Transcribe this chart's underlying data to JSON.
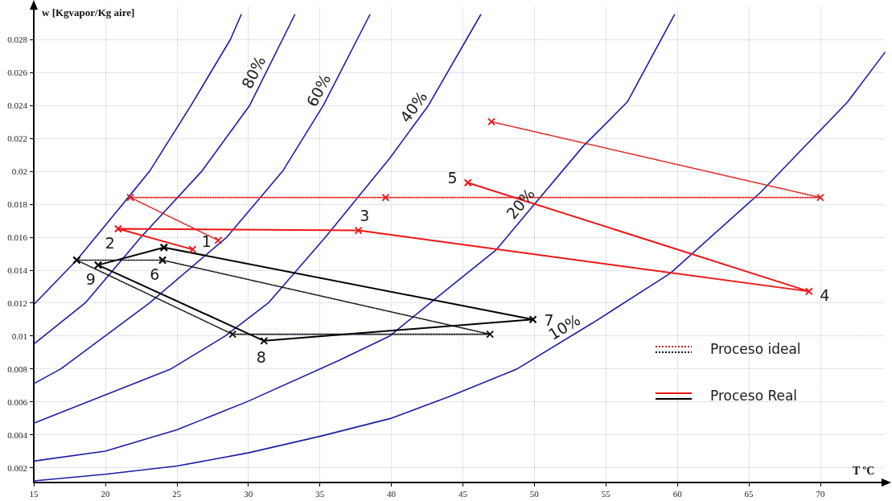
{
  "chart_data": {
    "type": "line",
    "xlabel": "T ºC",
    "ylabel": "w [Kgvapor/Kg aire]",
    "xlim": [
      15,
      74.5
    ],
    "ylim": [
      0.0011,
      0.03
    ],
    "xticks": [
      15,
      20,
      25,
      30,
      35,
      40,
      45,
      50,
      55,
      60,
      65,
      70
    ],
    "yticks": [
      0.002,
      0.004,
      0.006,
      0.008,
      0.01,
      0.012,
      0.014,
      0.016,
      0.018,
      0.02,
      0.022,
      0.024,
      0.026,
      0.028
    ],
    "grid": true,
    "legend": "bottom right",
    "series": [
      {
        "color": "#1c1ca8",
        "marker": "none",
        "line_style": "solid",
        "x": [
          15,
          18,
          21.6,
          23.1,
          26,
          28.75,
          29.5
        ],
        "values": [
          0.0119,
          0.0146,
          0.0184,
          0.02,
          0.024,
          0.028,
          0.0295
        ]
      },
      {
        "color": "#1c1ca8",
        "marker": "none",
        "line_style": "solid",
        "x": [
          15,
          18.6,
          22.5,
          26.75,
          30.1,
          33.25
        ],
        "values": [
          0.0095,
          0.012,
          0.016,
          0.02,
          0.024,
          0.0295
        ]
      },
      {
        "color": "#1c1ca8",
        "marker": "none",
        "line_style": "solid",
        "x": [
          15,
          16.9,
          23.1,
          28.5,
          32.4,
          35.25,
          38.5
        ],
        "values": [
          0.0071,
          0.008,
          0.012,
          0.016,
          0.02,
          0.024,
          0.0295
        ]
      },
      {
        "color": "#1c1ca8",
        "marker": "none",
        "line_style": "solid",
        "x": [
          15,
          24.6,
          28.4,
          31.4,
          35.4,
          39.9,
          42.6,
          46.25
        ],
        "values": [
          0.0047,
          0.008,
          0.01,
          0.012,
          0.016,
          0.0208,
          0.024,
          0.0295
        ]
      },
      {
        "color": "#1c1ca8",
        "marker": "none",
        "line_style": "solid",
        "x": [
          15,
          20,
          25,
          29.9,
          36.3,
          39.9,
          43,
          47.3,
          53.4,
          56.5,
          59.8
        ],
        "values": [
          0.0024,
          0.003,
          0.0043,
          0.006,
          0.0085,
          0.01,
          0.0122,
          0.0152,
          0.0215,
          0.0242,
          0.0295
        ]
      },
      {
        "color": "#1c1ca8",
        "marker": "none",
        "line_style": "solid",
        "x": [
          15,
          20,
          25,
          30,
          35,
          40,
          44,
          48.8,
          54.1,
          59.5,
          65.8,
          71.9,
          74.5
        ],
        "values": [
          0.0012,
          0.0016,
          0.0021,
          0.0029,
          0.0039,
          0.005,
          0.0063,
          0.008,
          0.0108,
          0.0138,
          0.0187,
          0.0242,
          0.0272
        ]
      },
      {
        "name": "Proceso ideal",
        "color": "#e02020",
        "marker": "cross",
        "line_style": "dotted",
        "x": [
          27.9,
          21.75,
          39.6,
          70,
          47
        ],
        "values": [
          0.0158,
          0.0184,
          0.0184,
          0.0184,
          0.023
        ]
      },
      {
        "color": "#111111",
        "marker": "cross",
        "line_style": "dotted",
        "x": [
          24,
          46.9,
          28.9,
          18
        ],
        "values": [
          0.0146,
          0.0101,
          0.0101,
          0.0146
        ]
      },
      {
        "color": "#111111",
        "marker": "cross",
        "line_style": "dotted",
        "x": [
          18,
          24
        ],
        "values": [
          0.0146,
          0.0146
        ]
      },
      {
        "name": "Proceso Real",
        "color": "#f01515",
        "marker": "cross",
        "line_style": "solid",
        "x": [
          26.1,
          20.9,
          37.7,
          69.2,
          45.35
        ],
        "values": [
          0.01525,
          0.0165,
          0.0164,
          0.0127,
          0.0193
        ]
      },
      {
        "color": "#000000",
        "marker": "cross",
        "line_style": "solid",
        "x": [
          24.1,
          49.9,
          31.1,
          19.5
        ],
        "values": [
          0.01537,
          0.011,
          0.0097,
          0.0143
        ]
      },
      {
        "color": "#000000",
        "marker": "cross",
        "line_style": "solid",
        "x": [
          19.5,
          24.1
        ],
        "values": [
          0.0143,
          0.01537
        ]
      }
    ],
    "annotations": [
      {
        "text": "80%",
        "x": 31.07,
        "y": 0.0257
      },
      {
        "text": "60%",
        "x": 35.6,
        "y": 0.0246
      },
      {
        "text": "40%",
        "x": 42.18,
        "y": 0.0235
      },
      {
        "text": "20%",
        "x": 49.62,
        "y": 0.0176
      },
      {
        "text": "10%",
        "x": 52.5,
        "y": 0.00996
      },
      {
        "text": "1",
        "x": 26.1,
        "y": 0.01525
      },
      {
        "text": "2",
        "x": 20.9,
        "y": 0.0165
      },
      {
        "text": "3",
        "x": 37.7,
        "y": 0.0164
      },
      {
        "text": "4",
        "x": 69.2,
        "y": 0.0127
      },
      {
        "text": "5",
        "x": 45.35,
        "y": 0.0193
      },
      {
        "text": "6",
        "x": 24,
        "y": 0.0146
      },
      {
        "text": "7",
        "x": 49.9,
        "y": 0.011
      },
      {
        "text": "8",
        "x": 31.1,
        "y": 0.0097
      },
      {
        "text": "9",
        "x": 19.5,
        "y": 0.0143
      }
    ]
  }
}
